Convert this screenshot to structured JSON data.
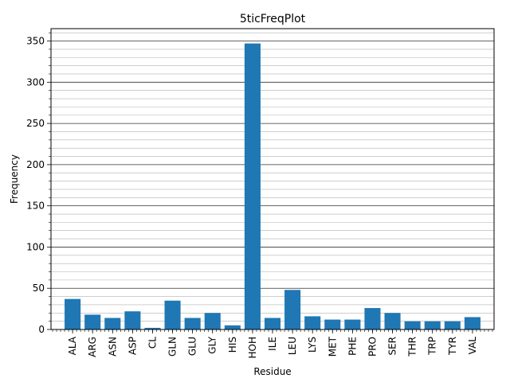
{
  "chart_data": {
    "type": "bar",
    "title": "5ticFreqPlot",
    "xlabel": "Residue",
    "ylabel": "Frequency",
    "categories": [
      "ALA",
      "ARG",
      "ASN",
      "ASP",
      "CL",
      "GLN",
      "GLU",
      "GLY",
      "HIS",
      "HOH",
      "ILE",
      "LEU",
      "LYS",
      "MET",
      "PHE",
      "PRO",
      "SER",
      "THR",
      "TRP",
      "TYR",
      "VAL"
    ],
    "values": [
      37,
      18,
      14,
      22,
      2,
      35,
      14,
      20,
      5,
      347,
      14,
      48,
      16,
      12,
      12,
      26,
      20,
      10,
      10,
      10,
      15
    ],
    "ylim": [
      0,
      365
    ],
    "yticks": [
      0,
      50,
      100,
      150,
      200,
      250,
      300,
      350
    ],
    "grid": true,
    "bar_color": "#1f77b4"
  }
}
